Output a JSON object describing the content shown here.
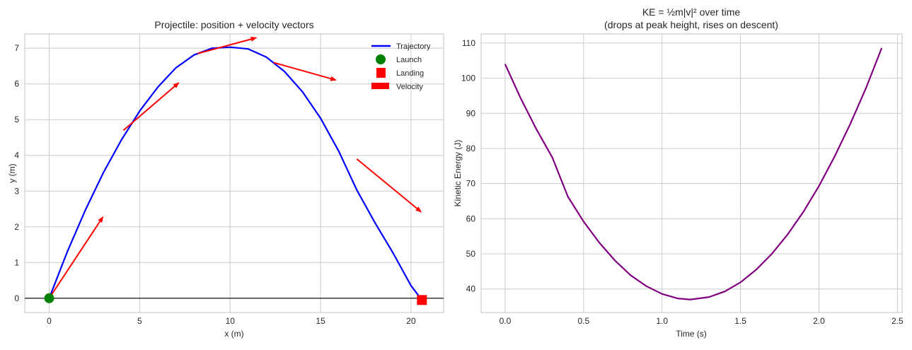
{
  "chart_data": [
    {
      "type": "line",
      "title": "Projectile: position + velocity vectors",
      "xlabel": "x (m)",
      "ylabel": "y (m)",
      "xlim": [
        -1.35,
        21.8
      ],
      "ylim": [
        -0.4,
        7.4
      ],
      "xticks": [
        0,
        5,
        10,
        15,
        20
      ],
      "yticks": [
        0,
        1,
        2,
        3,
        4,
        5,
        6,
        7
      ],
      "grid": true,
      "legend_position": "top-right",
      "series": [
        {
          "name": "Trajectory",
          "color": "#0000ff",
          "x": [
            0,
            1,
            2,
            3,
            4,
            5,
            6,
            7,
            8,
            9,
            10,
            11,
            12,
            13,
            14,
            15,
            16,
            17,
            18,
            19,
            20,
            20.6
          ],
          "y": [
            0,
            1.3,
            2.47,
            3.52,
            4.44,
            5.24,
            5.91,
            6.45,
            6.81,
            7.0,
            7.03,
            6.98,
            6.75,
            6.35,
            5.78,
            5.04,
            4.12,
            3.03,
            2.12,
            1.27,
            0.35,
            -0.05
          ]
        },
        {
          "name": "Launch",
          "type": "marker",
          "shape": "circle",
          "color": "#008000",
          "x": [
            0
          ],
          "y": [
            0
          ]
        },
        {
          "name": "Landing",
          "type": "marker",
          "shape": "square",
          "color": "#ff0000",
          "x": [
            20.6
          ],
          "y": [
            -0.05
          ]
        },
        {
          "name": "Velocity",
          "type": "quiver",
          "color": "#ff0000",
          "vectors": [
            {
              "x": 0,
              "y": 0,
              "x2": 3.0,
              "y2": 2.3
            },
            {
              "x": 4.1,
              "y": 4.7,
              "x2": 7.2,
              "y2": 6.05
            },
            {
              "x": 8.2,
              "y": 6.85,
              "x2": 11.5,
              "y2": 7.3
            },
            {
              "x": 12.4,
              "y": 6.6,
              "x2": 15.9,
              "y2": 6.1
            },
            {
              "x": 17.0,
              "y": 3.9,
              "x2": 20.6,
              "y2": 2.4
            }
          ]
        }
      ],
      "hline": {
        "y": 0,
        "color": "#000000"
      }
    },
    {
      "type": "line",
      "title": "KE = ½m|v|² over time",
      "subtitle": "(drops at peak height, rises on descent)",
      "xlabel": "Time (s)",
      "ylabel": "Kinetic Energy (J)",
      "xlim": [
        -0.153,
        2.53
      ],
      "ylim": [
        33.3,
        112.6
      ],
      "xticks": [
        "0.0",
        "0.5",
        "1.0",
        "1.5",
        "2.0",
        "2.5"
      ],
      "yticks": [
        40,
        50,
        60,
        70,
        80,
        90,
        100,
        110
      ],
      "grid": true,
      "series": [
        {
          "color": "#800080",
          "x": [
            0,
            0.1,
            0.2,
            0.3,
            0.4,
            0.5,
            0.6,
            0.7,
            0.8,
            0.9,
            1.0,
            1.1,
            1.18,
            1.3,
            1.4,
            1.5,
            1.6,
            1.7,
            1.8,
            1.9,
            2.0,
            2.1,
            2.2,
            2.3,
            2.4
          ],
          "y": [
            104.0,
            94.2,
            85.4,
            77.5,
            66.3,
            59.2,
            53.2,
            48.1,
            43.9,
            40.8,
            38.6,
            37.3,
            37.0,
            37.7,
            39.3,
            41.9,
            45.5,
            50.0,
            55.5,
            61.9,
            69.3,
            77.7,
            87.0,
            97.2,
            108.6
          ]
        }
      ]
    }
  ]
}
